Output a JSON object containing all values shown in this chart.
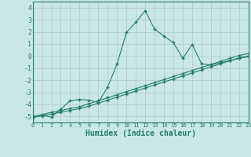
{
  "xlabel": "Humidex (Indice chaleur)",
  "xlim": [
    0,
    23
  ],
  "ylim": [
    -5.5,
    4.5
  ],
  "yticks": [
    -5,
    -4,
    -3,
    -2,
    -1,
    0,
    1,
    2,
    3,
    4
  ],
  "xticks": [
    0,
    1,
    2,
    3,
    4,
    5,
    6,
    7,
    8,
    9,
    10,
    11,
    12,
    13,
    14,
    15,
    16,
    17,
    18,
    19,
    20,
    21,
    22,
    23
  ],
  "bg_color": "#c8e8e8",
  "grid_color": "#b0c8c8",
  "line_color": "#2a7a6a",
  "line1_x": [
    0,
    1,
    2,
    3,
    4,
    5,
    6,
    7,
    8,
    9,
    10,
    11,
    12,
    13,
    14,
    15,
    16,
    17,
    18,
    19,
    20,
    21,
    22,
    23
  ],
  "line1_y": [
    -5.0,
    -4.9,
    -5.05,
    -4.4,
    -3.7,
    -3.6,
    -3.65,
    -3.85,
    -2.55,
    -0.65,
    1.95,
    2.8,
    3.75,
    2.2,
    1.65,
    1.1,
    -0.2,
    0.95,
    -0.65,
    -0.75,
    -0.55,
    -0.4,
    -0.2,
    -0.05
  ],
  "line2_x": [
    0,
    1,
    2,
    3,
    4,
    5,
    6,
    7,
    8,
    9,
    10,
    11,
    12,
    13,
    14,
    15,
    16,
    17,
    18,
    19,
    20,
    21,
    22,
    23
  ],
  "line2_y": [
    -5.05,
    -4.85,
    -4.65,
    -4.5,
    -4.35,
    -4.2,
    -3.95,
    -3.7,
    -3.45,
    -3.2,
    -2.95,
    -2.7,
    -2.45,
    -2.2,
    -1.95,
    -1.7,
    -1.45,
    -1.2,
    -0.95,
    -0.7,
    -0.45,
    -0.2,
    0.05,
    0.2
  ],
  "line3_x": [
    0,
    1,
    2,
    3,
    4,
    5,
    6,
    7,
    8,
    9,
    10,
    11,
    12,
    13,
    14,
    15,
    16,
    17,
    18,
    19,
    20,
    21,
    22,
    23
  ],
  "line3_y": [
    -5.1,
    -4.95,
    -4.8,
    -4.65,
    -4.5,
    -4.35,
    -4.15,
    -3.9,
    -3.65,
    -3.4,
    -3.15,
    -2.9,
    -2.65,
    -2.4,
    -2.15,
    -1.9,
    -1.65,
    -1.4,
    -1.15,
    -0.9,
    -0.65,
    -0.4,
    -0.15,
    0.0
  ]
}
